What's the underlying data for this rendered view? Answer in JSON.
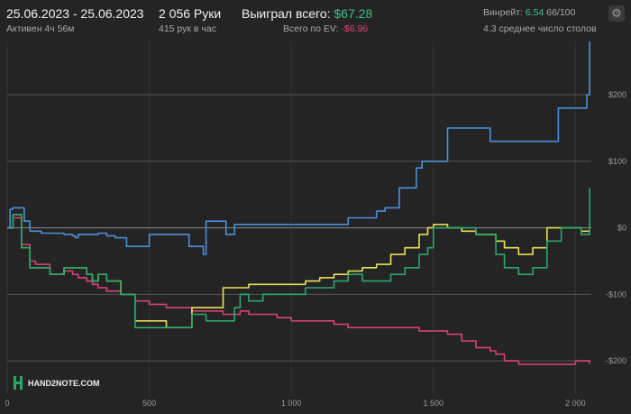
{
  "header": {
    "date_range": "25.06.2023 - 25.06.2023",
    "active": "Активен 4ч 56м",
    "hands": "2 056 Руки",
    "hands_per_hour": "415 рук в час",
    "won_label": "Выиграл всего:",
    "won_value": "$67.28",
    "ev_label": "Всего по EV:",
    "ev_value": "-$6.96",
    "winrate_label": "Винрейт:",
    "winrate_value": "6.54",
    "winrate_sample": "66/100",
    "tables": "4.3 среднее число столов"
  },
  "colors": {
    "background": "#242424",
    "blue": "#4a90d9",
    "green": "#2aa86a",
    "yellow": "#e9e15a",
    "pink": "#d9417a",
    "positive": "#3fc07f",
    "negative": "#e0417f"
  },
  "logo_text": "HAND2NOTE.COM",
  "chart_data": {
    "type": "line",
    "xlim": [
      0,
      2056
    ],
    "ylim": [
      -250,
      280
    ],
    "x_ticks": [
      0,
      500,
      1000,
      1500,
      2000
    ],
    "x_tick_labels": [
      "0",
      "500",
      "1 000",
      "1 500",
      "2 000"
    ],
    "y_ticks": [
      200,
      100,
      0,
      -100,
      -200
    ],
    "y_tick_labels": [
      "$200",
      "$100",
      "$0",
      "-$100",
      "-$200"
    ],
    "grid": true,
    "series": [
      {
        "key": "blue",
        "color": "#4a90d9",
        "x": [
          0,
          10,
          20,
          60,
          80,
          100,
          120,
          160,
          200,
          230,
          240,
          250,
          320,
          350,
          380,
          420,
          460,
          480,
          500,
          560,
          620,
          640,
          680,
          690,
          700,
          750,
          770,
          800,
          840,
          880,
          920,
          960,
          1000,
          1040,
          1100,
          1150,
          1200,
          1250,
          1300,
          1330,
          1360,
          1380,
          1400,
          1440,
          1460,
          1500,
          1550,
          1600,
          1650,
          1700,
          1750,
          1800,
          1850,
          1900,
          1940,
          2000,
          2020,
          2040,
          2050
        ],
        "y": [
          0,
          28,
          30,
          10,
          -5,
          -5,
          -8,
          -8,
          -10,
          -12,
          -15,
          -10,
          -8,
          -12,
          -15,
          -28,
          -28,
          -28,
          -10,
          -10,
          -10,
          -28,
          -28,
          -40,
          10,
          10,
          -10,
          5,
          5,
          5,
          5,
          5,
          5,
          5,
          5,
          5,
          15,
          15,
          25,
          30,
          30,
          60,
          60,
          90,
          100,
          100,
          150,
          150,
          150,
          130,
          130,
          130,
          130,
          130,
          180,
          180,
          180,
          200,
          280
        ]
      },
      {
        "key": "green",
        "color": "#2aa86a",
        "x": [
          0,
          20,
          50,
          80,
          100,
          150,
          200,
          230,
          250,
          280,
          300,
          320,
          350,
          400,
          450,
          500,
          560,
          600,
          650,
          700,
          760,
          780,
          800,
          820,
          850,
          900,
          950,
          1000,
          1050,
          1100,
          1150,
          1200,
          1250,
          1300,
          1350,
          1400,
          1450,
          1480,
          1500,
          1550,
          1600,
          1650,
          1700,
          1720,
          1750,
          1800,
          1850,
          1900,
          1950,
          2000,
          2020,
          2050
        ],
        "y": [
          0,
          20,
          -30,
          -60,
          -60,
          -70,
          -60,
          -60,
          -60,
          -70,
          -80,
          -70,
          -80,
          -100,
          -150,
          -150,
          -150,
          -150,
          -130,
          -140,
          -140,
          -140,
          -120,
          -100,
          -110,
          -100,
          -100,
          -100,
          -90,
          -90,
          -80,
          -70,
          -80,
          -80,
          -70,
          -60,
          -40,
          -30,
          0,
          0,
          0,
          -10,
          -10,
          -40,
          -60,
          -70,
          -60,
          -20,
          0,
          0,
          -10,
          60
        ]
      },
      {
        "key": "yellow",
        "color": "#e9e15a",
        "x": [
          0,
          20,
          50,
          80,
          100,
          150,
          200,
          230,
          250,
          280,
          300,
          320,
          350,
          400,
          450,
          500,
          560,
          600,
          650,
          700,
          760,
          780,
          800,
          820,
          850,
          900,
          950,
          1000,
          1050,
          1100,
          1150,
          1200,
          1250,
          1300,
          1350,
          1400,
          1450,
          1480,
          1500,
          1550,
          1600,
          1650,
          1700,
          1720,
          1750,
          1800,
          1850,
          1900,
          1950,
          2000,
          2020,
          2050
        ],
        "y": [
          0,
          20,
          -30,
          -60,
          -60,
          -70,
          -60,
          -60,
          -60,
          -70,
          -80,
          -70,
          -80,
          -100,
          -140,
          -140,
          -150,
          -150,
          -120,
          -120,
          -90,
          -90,
          -90,
          -90,
          -85,
          -85,
          -85,
          -85,
          -80,
          -75,
          -70,
          -65,
          -60,
          -55,
          -40,
          -30,
          -10,
          0,
          5,
          0,
          -5,
          -10,
          -10,
          -20,
          -30,
          -40,
          -30,
          0,
          0,
          0,
          -5,
          -5
        ]
      },
      {
        "key": "pink",
        "color": "#d9417a",
        "x": [
          0,
          20,
          50,
          80,
          100,
          150,
          200,
          230,
          250,
          280,
          300,
          320,
          350,
          400,
          450,
          500,
          560,
          600,
          650,
          700,
          760,
          780,
          800,
          820,
          850,
          900,
          950,
          1000,
          1050,
          1100,
          1150,
          1200,
          1250,
          1300,
          1350,
          1400,
          1450,
          1480,
          1500,
          1550,
          1600,
          1650,
          1700,
          1720,
          1750,
          1800,
          1850,
          1900,
          1950,
          2000,
          2020,
          2050
        ],
        "y": [
          0,
          15,
          -25,
          -50,
          -55,
          -70,
          -65,
          -70,
          -75,
          -80,
          -85,
          -90,
          -95,
          -100,
          -110,
          -115,
          -120,
          -120,
          -125,
          -125,
          -130,
          -130,
          -130,
          -125,
          -130,
          -130,
          -135,
          -140,
          -140,
          -140,
          -145,
          -150,
          -150,
          -150,
          -150,
          -150,
          -155,
          -155,
          -155,
          -160,
          -170,
          -180,
          -185,
          -190,
          -200,
          -205,
          -205,
          -205,
          -205,
          -200,
          -200,
          -205
        ]
      }
    ]
  }
}
